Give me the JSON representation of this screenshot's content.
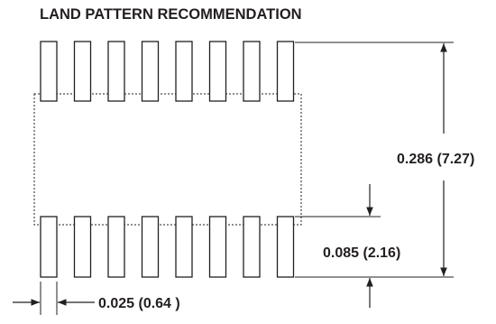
{
  "title": "LAND PATTERN RECOMMENDATION",
  "pads_per_row": 8,
  "dimensions": {
    "overall_height": "0.286 (7.27)",
    "pad_height": "0.085 (2.16)",
    "pad_pitch": "0.025 (0.64 )"
  },
  "colors": {
    "ink": "#231f20",
    "outline": "#231f20"
  }
}
